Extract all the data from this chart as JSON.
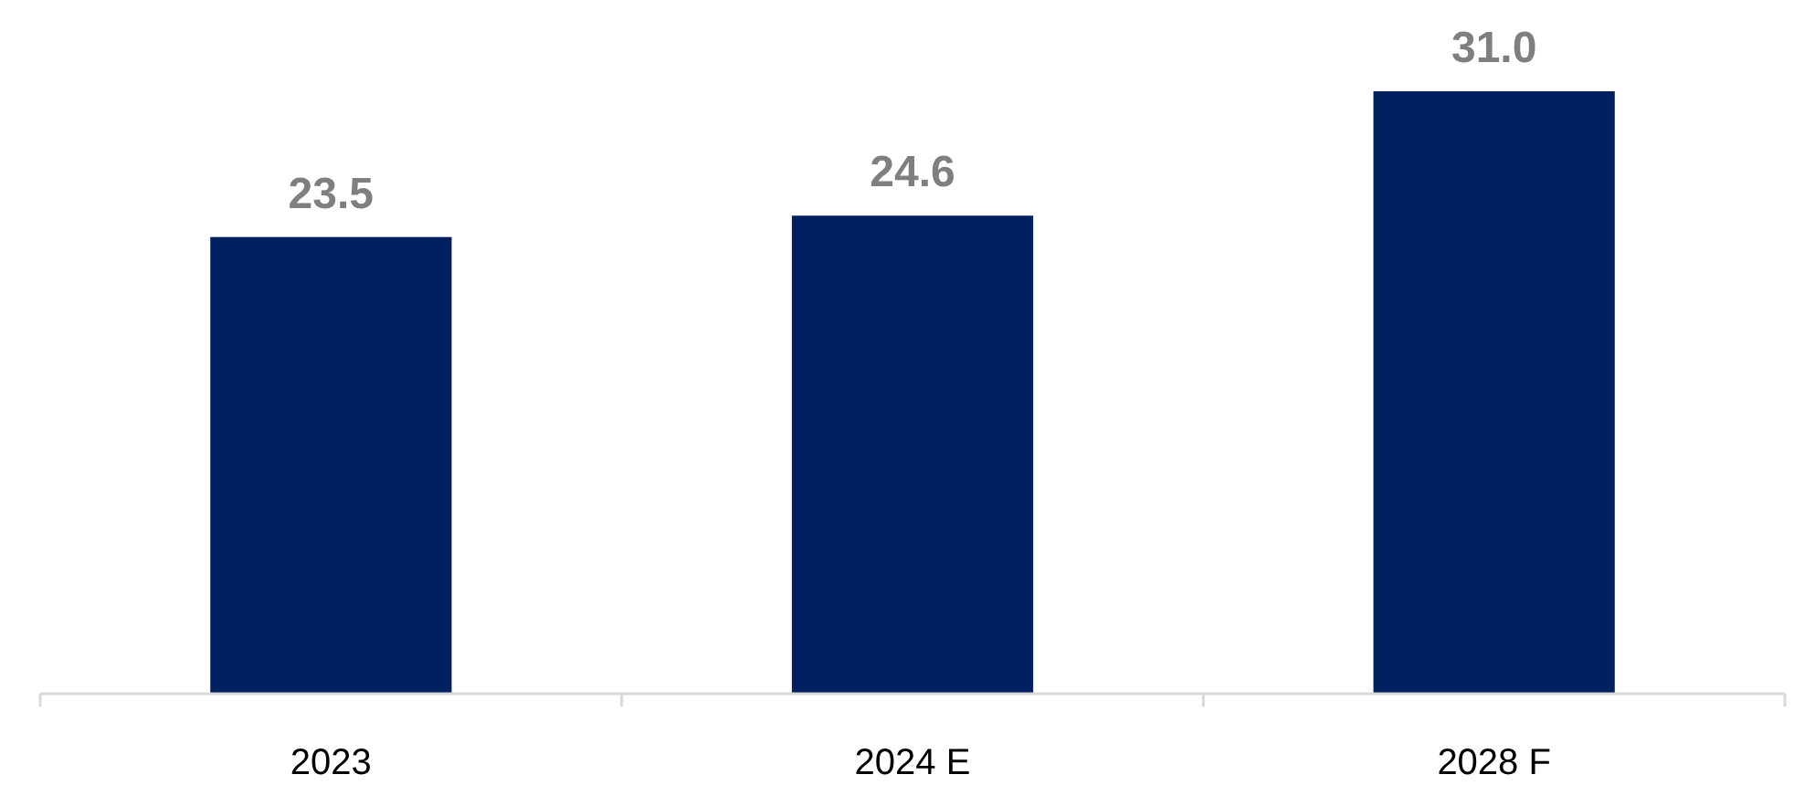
{
  "chart_data": {
    "type": "bar",
    "categories": [
      "2023",
      "2024 E",
      "2028 F"
    ],
    "values": [
      23.5,
      24.6,
      31.0
    ],
    "value_labels": [
      "23.5",
      "24.6",
      "31.0"
    ],
    "color": "#002060"
  }
}
